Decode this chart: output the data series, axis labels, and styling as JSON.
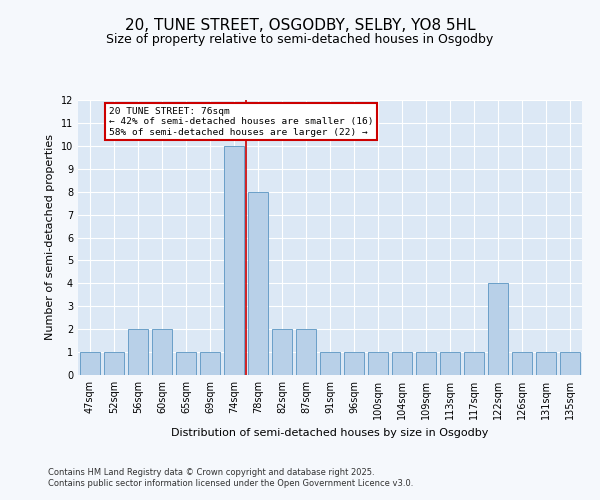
{
  "title_line1": "20, TUNE STREET, OSGODBY, SELBY, YO8 5HL",
  "title_line2": "Size of property relative to semi-detached houses in Osgodby",
  "xlabel": "Distribution of semi-detached houses by size in Osgodby",
  "ylabel": "Number of semi-detached properties",
  "categories": [
    "47sqm",
    "52sqm",
    "56sqm",
    "60sqm",
    "65sqm",
    "69sqm",
    "74sqm",
    "78sqm",
    "82sqm",
    "87sqm",
    "91sqm",
    "96sqm",
    "100sqm",
    "104sqm",
    "109sqm",
    "113sqm",
    "117sqm",
    "122sqm",
    "126sqm",
    "131sqm",
    "135sqm"
  ],
  "values": [
    1,
    1,
    2,
    2,
    1,
    1,
    10,
    8,
    2,
    2,
    1,
    1,
    1,
    1,
    1,
    1,
    1,
    4,
    1,
    1,
    1
  ],
  "bar_color": "#b8d0e8",
  "bar_edge_color": "#6a9fc8",
  "highlight_index": 6,
  "highlight_line_color": "#cc0000",
  "annotation_text": "20 TUNE STREET: 76sqm\n← 42% of semi-detached houses are smaller (16)\n58% of semi-detached houses are larger (22) →",
  "annotation_box_color": "#ffffff",
  "annotation_box_edge_color": "#cc0000",
  "ylim": [
    0,
    12
  ],
  "yticks": [
    0,
    1,
    2,
    3,
    4,
    5,
    6,
    7,
    8,
    9,
    10,
    11,
    12
  ],
  "plot_bg_color": "#dce8f5",
  "fig_bg_color": "#f5f8fc",
  "footer_text": "Contains HM Land Registry data © Crown copyright and database right 2025.\nContains public sector information licensed under the Open Government Licence v3.0.",
  "grid_color": "#ffffff",
  "title_fontsize": 11,
  "subtitle_fontsize": 9,
  "axis_label_fontsize": 8,
  "tick_fontsize": 7,
  "footer_fontsize": 6
}
